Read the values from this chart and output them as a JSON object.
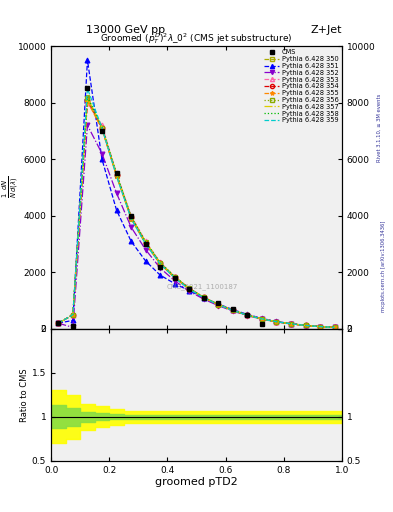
{
  "title_top": "13000 GeV pp",
  "title_right": "Z+Jet",
  "plot_title": "Groomed $(p_T^D)^2\\lambda\\_0^2$ (CMS jet substructure)",
  "xlabel": "groomed pTD2",
  "ylabel_ratio": "Ratio to CMS",
  "watermark": "CMS_2021_1100187",
  "right_label": "mcplots.cern.ch [arXiv:1306.3436]",
  "rivet_label": "Rivet 3.1.10, ≥ 3M events",
  "xlim": [
    0,
    1
  ],
  "ylim_main": [
    0,
    10000
  ],
  "ylim_ratio": [
    0.5,
    2.0
  ],
  "yticks_main": [
    0,
    2000,
    4000,
    6000,
    8000,
    10000
  ],
  "cms_x": [
    0.025,
    0.075,
    0.125,
    0.175,
    0.225,
    0.275,
    0.325,
    0.375,
    0.425,
    0.475,
    0.525,
    0.575,
    0.625,
    0.675,
    0.725
  ],
  "cms_y": [
    200,
    100,
    8500,
    7000,
    5500,
    4000,
    3000,
    2200,
    1800,
    1400,
    1100,
    900,
    700,
    500,
    180
  ],
  "pythia_x": [
    0.025,
    0.075,
    0.125,
    0.175,
    0.225,
    0.275,
    0.325,
    0.375,
    0.425,
    0.475,
    0.525,
    0.575,
    0.625,
    0.675,
    0.725,
    0.775,
    0.825,
    0.875,
    0.925,
    0.975
  ],
  "lines": [
    {
      "label": "Pythia 6.428 350",
      "color": "#aaaa00",
      "linestyle": "--",
      "marker": "s",
      "markerfacecolor": "none",
      "y": [
        200,
        500,
        8200,
        7100,
        5400,
        3900,
        3000,
        2300,
        1800,
        1400,
        1100,
        850,
        650,
        480,
        350,
        250,
        180,
        120,
        80,
        50
      ]
    },
    {
      "label": "Pythia 6.428 351",
      "color": "#0000ff",
      "linestyle": "--",
      "marker": "^",
      "markerfacecolor": "#0000ff",
      "y": [
        200,
        300,
        9500,
        6000,
        4200,
        3100,
        2400,
        1900,
        1600,
        1350,
        1100,
        880,
        680,
        510,
        370,
        260,
        185,
        125,
        82,
        52
      ]
    },
    {
      "label": "Pythia 6.428 352",
      "color": "#8800cc",
      "linestyle": "-.",
      "marker": "v",
      "markerfacecolor": "#8800cc",
      "y": [
        200,
        50,
        7200,
        6200,
        4800,
        3600,
        2800,
        2150,
        1700,
        1330,
        1050,
        820,
        630,
        465,
        340,
        240,
        172,
        115,
        76,
        48
      ]
    },
    {
      "label": "Pythia 6.428 353",
      "color": "#ff66aa",
      "linestyle": "--",
      "marker": "^",
      "markerfacecolor": "none",
      "y": [
        200,
        500,
        8000,
        7200,
        5500,
        4000,
        3100,
        2350,
        1850,
        1440,
        1120,
        865,
        660,
        488,
        355,
        252,
        180,
        121,
        79,
        50
      ]
    },
    {
      "label": "Pythia 6.428 354",
      "color": "#dd0000",
      "linestyle": "--",
      "marker": "o",
      "markerfacecolor": "none",
      "y": [
        200,
        500,
        8100,
        7100,
        5450,
        3950,
        3050,
        2320,
        1830,
        1425,
        1110,
        860,
        655,
        484,
        352,
        250,
        178,
        120,
        78,
        49
      ]
    },
    {
      "label": "Pythia 6.428 355",
      "color": "#ff8800",
      "linestyle": "--",
      "marker": "*",
      "markerfacecolor": "#ff8800",
      "y": [
        200,
        500,
        8050,
        7050,
        5420,
        3930,
        3020,
        2300,
        1815,
        1412,
        1100,
        852,
        650,
        481,
        350,
        248,
        177,
        119,
        77,
        49
      ]
    },
    {
      "label": "Pythia 6.428 356",
      "color": "#88aa00",
      "linestyle": ":",
      "marker": "s",
      "markerfacecolor": "none",
      "y": [
        200,
        500,
        8150,
        7120,
        5460,
        3960,
        3060,
        2330,
        1835,
        1428,
        1112,
        858,
        654,
        483,
        351,
        249,
        178,
        120,
        78,
        49
      ]
    },
    {
      "label": "Pythia 6.428 357",
      "color": "#ddcc00",
      "linestyle": "-.",
      "marker": null,
      "markerfacecolor": null,
      "y": [
        200,
        500,
        8180,
        7130,
        5470,
        3970,
        3070,
        2340,
        1840,
        1432,
        1115,
        860,
        656,
        484,
        352,
        250,
        178,
        120,
        78,
        49
      ]
    },
    {
      "label": "Pythia 6.428 358",
      "color": "#00bb00",
      "linestyle": ":",
      "marker": null,
      "markerfacecolor": null,
      "y": [
        200,
        500,
        8200,
        7140,
        5480,
        3975,
        3075,
        2345,
        1845,
        1435,
        1117,
        862,
        657,
        485,
        353,
        251,
        179,
        121,
        79,
        50
      ]
    },
    {
      "label": "Pythia 6.428 359",
      "color": "#00cccc",
      "linestyle": "--",
      "marker": null,
      "markerfacecolor": null,
      "y": [
        200,
        500,
        8500,
        7100,
        5400,
        3900,
        3000,
        2300,
        1800,
        1400,
        1100,
        850,
        650,
        480,
        350,
        250,
        180,
        120,
        80,
        50
      ]
    }
  ],
  "ratio_yellow_x": [
    0.0,
    0.05,
    0.1,
    0.15,
    0.2,
    0.25,
    1.0
  ],
  "ratio_yellow_ylo": [
    0.7,
    0.75,
    0.85,
    0.88,
    0.91,
    0.93,
    0.93
  ],
  "ratio_yellow_yhi": [
    1.3,
    1.25,
    1.15,
    1.12,
    1.09,
    1.07,
    1.07
  ],
  "ratio_green_x": [
    0.0,
    0.05,
    0.1,
    0.15,
    0.2,
    0.25,
    1.0
  ],
  "ratio_green_ylo": [
    0.87,
    0.9,
    0.94,
    0.96,
    0.97,
    0.975,
    0.975
  ],
  "ratio_green_yhi": [
    1.13,
    1.1,
    1.06,
    1.04,
    1.03,
    1.025,
    1.025
  ],
  "bg_color": "#f0f0f0"
}
